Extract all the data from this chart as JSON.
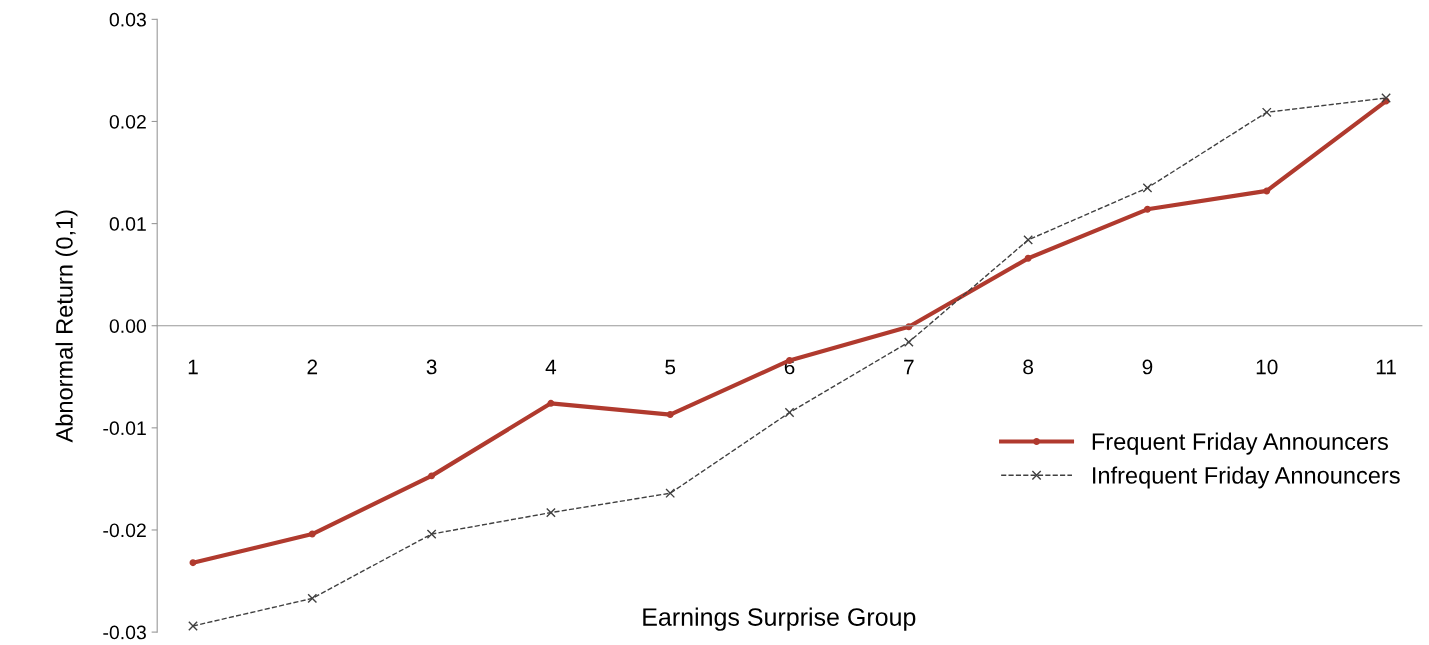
{
  "chart_data": {
    "type": "line",
    "xlabel": "Earnings Surprise Group",
    "ylabel": "Abnormal Return (0,1)",
    "categories": [
      "1",
      "2",
      "3",
      "4",
      "5",
      "6",
      "7",
      "8",
      "9",
      "10",
      "11"
    ],
    "ylim": [
      -0.03,
      0.03
    ],
    "yticks": [
      {
        "value": -0.03,
        "label": "-0.03"
      },
      {
        "value": -0.02,
        "label": "-0.02"
      },
      {
        "value": -0.01,
        "label": "-0.01"
      },
      {
        "value": 0,
        "label": "0.00"
      },
      {
        "value": 0.01,
        "label": "0.01"
      },
      {
        "value": 0.02,
        "label": "0.02"
      },
      {
        "value": 0.03,
        "label": "0.03"
      }
    ],
    "grid": false,
    "legend": "right",
    "series": [
      {
        "name": "Frequent Friday Announcers",
        "color": "#b03a2e",
        "marker": "circle",
        "line_style": "solid",
        "values": [
          -0.0232,
          -0.0204,
          -0.0147,
          -0.0076,
          -0.0087,
          -0.0034,
          -0.0001,
          0.0066,
          0.0114,
          0.0132,
          0.022
        ]
      },
      {
        "name": "Infrequent Friday Announcers",
        "color": "#404040",
        "marker": "cross",
        "line_style": "dashed",
        "values": [
          -0.0294,
          -0.0267,
          -0.0204,
          -0.0183,
          -0.0164,
          -0.0085,
          -0.0016,
          0.0084,
          0.0135,
          0.0209,
          0.0223
        ]
      }
    ]
  }
}
